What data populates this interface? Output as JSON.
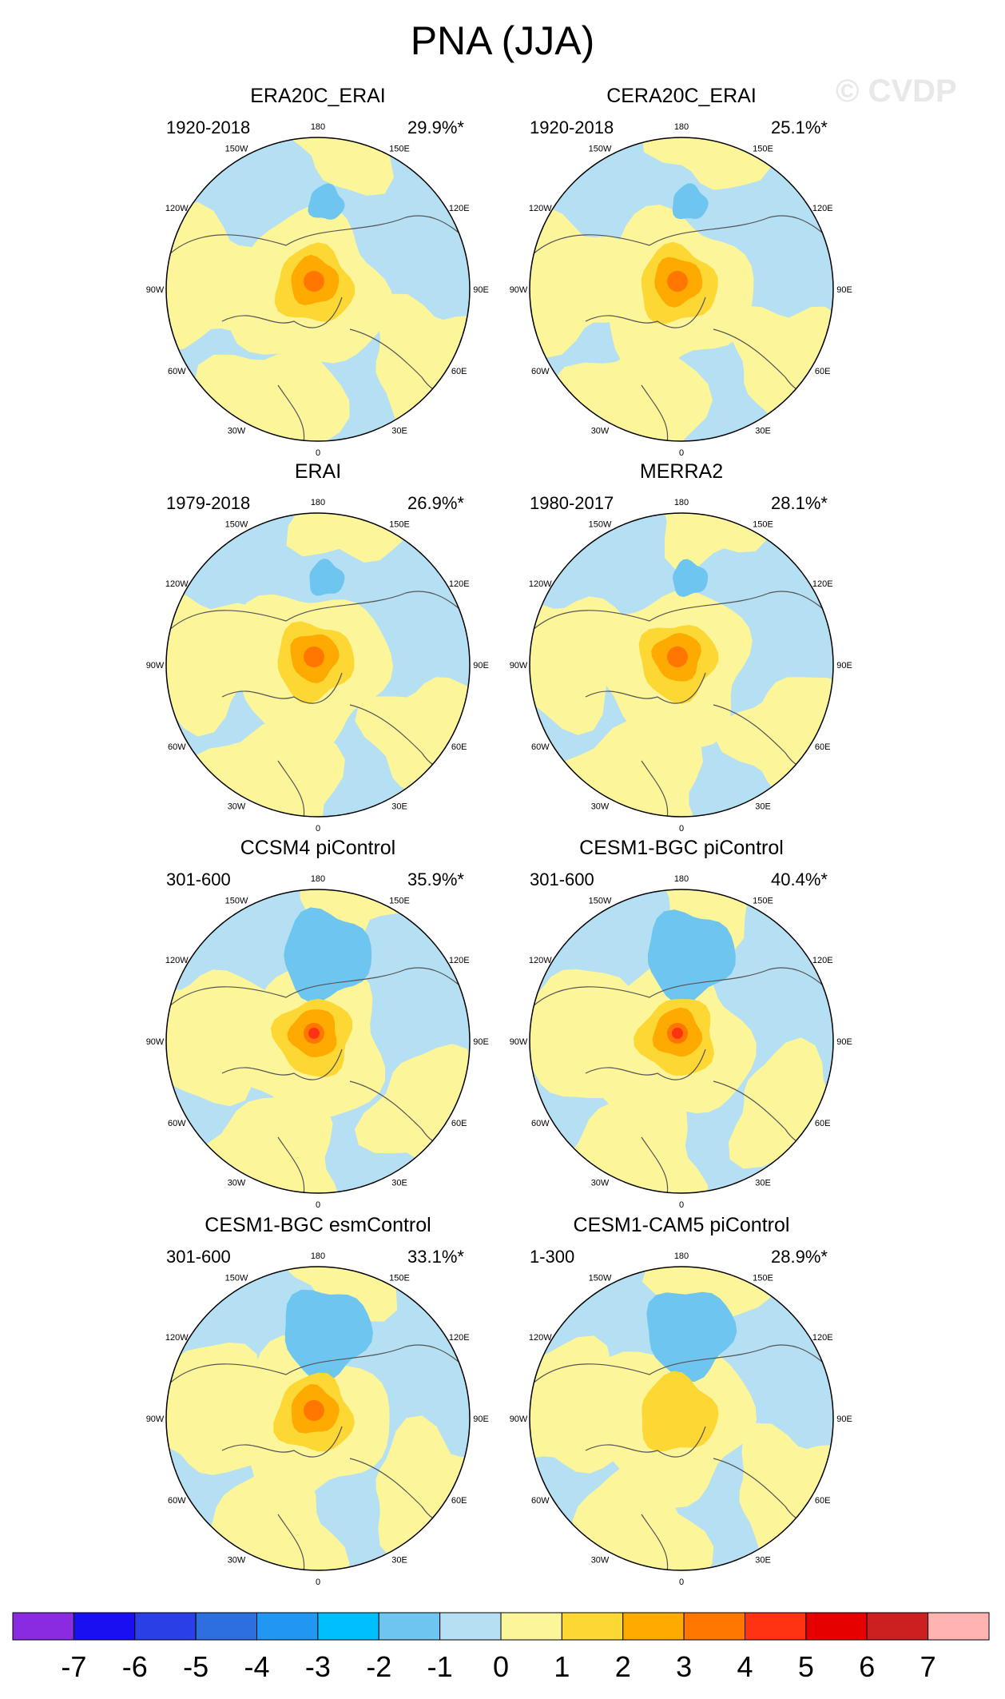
{
  "title": "PNA (JJA)",
  "watermark": "© CVDP",
  "chart_data": {
    "type": "polar-contour-map",
    "units": "hPa",
    "longitude_labels": [
      "180",
      "150E",
      "120E",
      "90E",
      "60E",
      "30E",
      "0",
      "30W",
      "60W",
      "90W",
      "120W",
      "150W"
    ],
    "panels": [
      {
        "title": "ERA20C_ERAI",
        "period": "1920-2018",
        "pct_variance": "29.9%*",
        "center_max_level": 3
      },
      {
        "title": "CERA20C_ERAI",
        "period": "1920-2018",
        "pct_variance": "25.1%*",
        "center_max_level": 3
      },
      {
        "title": "ERAI",
        "period": "1979-2018",
        "pct_variance": "26.9%*",
        "center_max_level": 3
      },
      {
        "title": "MERRA2",
        "period": "1980-2017",
        "pct_variance": "28.1%*",
        "center_max_level": 3
      },
      {
        "title": "CCSM4 piControl",
        "period": "301-600",
        "pct_variance": "35.9%*",
        "center_max_level": 4
      },
      {
        "title": "CESM1-BGC piControl",
        "period": "301-600",
        "pct_variance": "40.4%*",
        "center_max_level": 4
      },
      {
        "title": "CESM1-BGC esmControl",
        "period": "301-600",
        "pct_variance": "33.1%*",
        "center_max_level": 3
      },
      {
        "title": "CESM1-CAM5 piControl",
        "period": "1-300",
        "pct_variance": "28.9%*",
        "center_max_level": 2
      }
    ],
    "colorbar": {
      "tick_labels": [
        "-7",
        "-6",
        "-5",
        "-4",
        "-3",
        "-2",
        "-1",
        "0",
        "1",
        "2",
        "3",
        "4",
        "5",
        "6",
        "7"
      ],
      "colors": [
        "#8a2be2",
        "#1a0ff0",
        "#2a40e6",
        "#2e6fe0",
        "#2196f3",
        "#00bfff",
        "#6ec6f0",
        "#b5dff2",
        "#fdf59a",
        "#fdd835",
        "#ffaa00",
        "#ff7700",
        "#ff3311",
        "#e60000",
        "#cc1f1f",
        "#ffb3b3"
      ]
    }
  }
}
